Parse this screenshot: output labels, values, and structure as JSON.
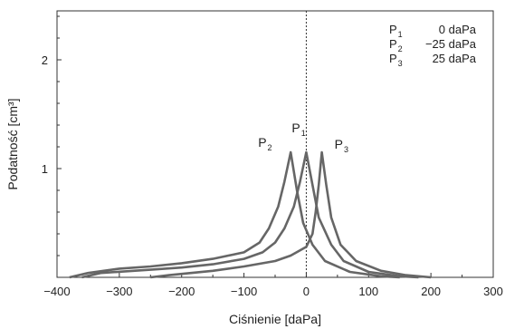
{
  "chart_data": {
    "type": "line",
    "xlabel": "Ciśnienie [daPa]",
    "ylabel": "Podatność [cm³]",
    "xlim": [
      -400,
      300
    ],
    "ylim": [
      0,
      2.45
    ],
    "grid": false,
    "x_ticks": [
      -400,
      -300,
      -200,
      -100,
      0,
      100,
      200,
      300
    ],
    "x_tick_labels": [
      "−400",
      "−300",
      "−200",
      "−100",
      "0",
      "100",
      "200",
      "300"
    ],
    "y_ticks": [
      1,
      2
    ],
    "y_tick_labels": [
      "1",
      "2"
    ],
    "reference_line_x": 0,
    "legend_position": "top-right",
    "legend": [
      {
        "symbol": "P",
        "sub": "1",
        "value": "0 daPa"
      },
      {
        "symbol": "P",
        "sub": "2",
        "value": "−25 daPa"
      },
      {
        "symbol": "P",
        "sub": "3",
        "value": "25 daPa"
      }
    ],
    "series": [
      {
        "name": "P1",
        "label": "P",
        "label_sub": "1",
        "peak": [
          0,
          1.15
        ],
        "points": [
          [
            -360,
            0
          ],
          [
            -330,
            0.04
          ],
          [
            -250,
            0.07
          ],
          [
            -200,
            0.09
          ],
          [
            -150,
            0.12
          ],
          [
            -100,
            0.17
          ],
          [
            -70,
            0.23
          ],
          [
            -50,
            0.32
          ],
          [
            -35,
            0.45
          ],
          [
            -20,
            0.65
          ],
          [
            -10,
            0.88
          ],
          [
            0,
            1.15
          ],
          [
            10,
            0.85
          ],
          [
            20,
            0.55
          ],
          [
            40,
            0.3
          ],
          [
            60,
            0.15
          ],
          [
            100,
            0.05
          ],
          [
            150,
            0.01
          ],
          [
            180,
            0
          ]
        ]
      },
      {
        "name": "P2",
        "label": "P",
        "label_sub": "2",
        "peak": [
          -25,
          1.15
        ],
        "points": [
          [
            -380,
            0
          ],
          [
            -350,
            0.04
          ],
          [
            -300,
            0.08
          ],
          [
            -250,
            0.1
          ],
          [
            -200,
            0.13
          ],
          [
            -150,
            0.17
          ],
          [
            -100,
            0.23
          ],
          [
            -75,
            0.32
          ],
          [
            -60,
            0.45
          ],
          [
            -45,
            0.65
          ],
          [
            -35,
            0.88
          ],
          [
            -25,
            1.15
          ],
          [
            -15,
            0.8
          ],
          [
            -5,
            0.5
          ],
          [
            10,
            0.3
          ],
          [
            30,
            0.15
          ],
          [
            70,
            0.05
          ],
          [
            120,
            0.01
          ],
          [
            150,
            0
          ]
        ]
      },
      {
        "name": "P3",
        "label": "P",
        "label_sub": "3",
        "peak": [
          25,
          1.15
        ],
        "points": [
          [
            -250,
            0
          ],
          [
            -220,
            0.02
          ],
          [
            -150,
            0.06
          ],
          [
            -100,
            0.1
          ],
          [
            -50,
            0.15
          ],
          [
            -25,
            0.2
          ],
          [
            0,
            0.28
          ],
          [
            10,
            0.4
          ],
          [
            15,
            0.6
          ],
          [
            20,
            0.85
          ],
          [
            25,
            1.15
          ],
          [
            32,
            0.85
          ],
          [
            40,
            0.55
          ],
          [
            55,
            0.3
          ],
          [
            80,
            0.15
          ],
          [
            120,
            0.06
          ],
          [
            160,
            0.02
          ],
          [
            200,
            0
          ]
        ]
      }
    ]
  }
}
